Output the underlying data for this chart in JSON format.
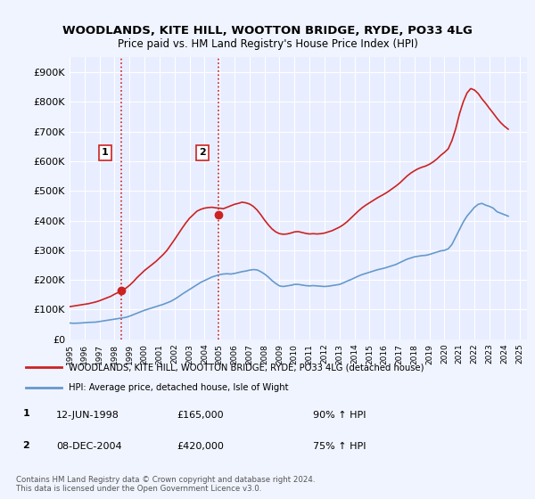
{
  "title": "WOODLANDS, KITE HILL, WOOTTON BRIDGE, RYDE, PO33 4LG",
  "subtitle": "Price paid vs. HM Land Registry's House Price Index (HPI)",
  "background_color": "#f0f4ff",
  "plot_bg_color": "#e8eeff",
  "ylim": [
    0,
    950000
  ],
  "yticks": [
    0,
    100000,
    200000,
    300000,
    400000,
    500000,
    600000,
    700000,
    800000,
    900000
  ],
  "ytick_labels": [
    "£0",
    "£100K",
    "£200K",
    "£300K",
    "£400K",
    "£500K",
    "£600K",
    "£700K",
    "£800K",
    "£900K"
  ],
  "xlim_start": 1995.0,
  "xlim_end": 2025.5,
  "xtick_years": [
    1995,
    1996,
    1997,
    1998,
    1999,
    2000,
    2001,
    2002,
    2003,
    2004,
    2005,
    2006,
    2007,
    2008,
    2009,
    2010,
    2011,
    2012,
    2013,
    2014,
    2015,
    2016,
    2017,
    2018,
    2019,
    2020,
    2021,
    2022,
    2023,
    2024,
    2025
  ],
  "sale1_x": 1998.44,
  "sale1_y": 165000,
  "sale1_label": "1",
  "sale2_x": 2004.93,
  "sale2_y": 420000,
  "sale2_label": "2",
  "hpi_line_color": "#6699cc",
  "price_line_color": "#cc2222",
  "vline_color": "#cc2222",
  "legend_label_price": "WOODLANDS, KITE HILL, WOOTTON BRIDGE, RYDE, PO33 4LG (detached house)",
  "legend_label_hpi": "HPI: Average price, detached house, Isle of Wight",
  "table_entries": [
    {
      "num": "1",
      "date": "12-JUN-1998",
      "price": "£165,000",
      "hpi": "90% ↑ HPI"
    },
    {
      "num": "2",
      "date": "08-DEC-2004",
      "price": "£420,000",
      "hpi": "75% ↑ HPI"
    }
  ],
  "footer": "Contains HM Land Registry data © Crown copyright and database right 2024.\nThis data is licensed under the Open Government Licence v3.0.",
  "hpi_data_x": [
    1995.0,
    1995.25,
    1995.5,
    1995.75,
    1996.0,
    1996.25,
    1996.5,
    1996.75,
    1997.0,
    1997.25,
    1997.5,
    1997.75,
    1998.0,
    1998.25,
    1998.5,
    1998.75,
    1999.0,
    1999.25,
    1999.5,
    1999.75,
    2000.0,
    2000.25,
    2000.5,
    2000.75,
    2001.0,
    2001.25,
    2001.5,
    2001.75,
    2002.0,
    2002.25,
    2002.5,
    2002.75,
    2003.0,
    2003.25,
    2003.5,
    2003.75,
    2004.0,
    2004.25,
    2004.5,
    2004.75,
    2005.0,
    2005.25,
    2005.5,
    2005.75,
    2006.0,
    2006.25,
    2006.5,
    2006.75,
    2007.0,
    2007.25,
    2007.5,
    2007.75,
    2008.0,
    2008.25,
    2008.5,
    2008.75,
    2009.0,
    2009.25,
    2009.5,
    2009.75,
    2010.0,
    2010.25,
    2010.5,
    2010.75,
    2011.0,
    2011.25,
    2011.5,
    2011.75,
    2012.0,
    2012.25,
    2012.5,
    2012.75,
    2013.0,
    2013.25,
    2013.5,
    2013.75,
    2014.0,
    2014.25,
    2014.5,
    2014.75,
    2015.0,
    2015.25,
    2015.5,
    2015.75,
    2016.0,
    2016.25,
    2016.5,
    2016.75,
    2017.0,
    2017.25,
    2017.5,
    2017.75,
    2018.0,
    2018.25,
    2018.5,
    2018.75,
    2019.0,
    2019.25,
    2019.5,
    2019.75,
    2020.0,
    2020.25,
    2020.5,
    2020.75,
    2021.0,
    2021.25,
    2021.5,
    2021.75,
    2022.0,
    2022.25,
    2022.5,
    2022.75,
    2023.0,
    2023.25,
    2023.5,
    2023.75,
    2024.0,
    2024.25
  ],
  "hpi_data_y": [
    55000,
    54000,
    54500,
    55000,
    56000,
    57000,
    57500,
    58000,
    60000,
    62000,
    64000,
    66000,
    68000,
    70000,
    72000,
    74000,
    78000,
    83000,
    88000,
    93000,
    98000,
    102000,
    106000,
    110000,
    114000,
    118000,
    123000,
    128000,
    135000,
    143000,
    152000,
    160000,
    168000,
    176000,
    184000,
    192000,
    198000,
    204000,
    210000,
    214000,
    218000,
    220000,
    221000,
    220000,
    222000,
    225000,
    228000,
    230000,
    233000,
    235000,
    234000,
    228000,
    220000,
    210000,
    198000,
    188000,
    180000,
    178000,
    180000,
    182000,
    185000,
    185000,
    183000,
    181000,
    180000,
    181000,
    180000,
    179000,
    178000,
    179000,
    181000,
    183000,
    185000,
    190000,
    196000,
    201000,
    207000,
    213000,
    218000,
    222000,
    226000,
    230000,
    234000,
    237000,
    240000,
    244000,
    248000,
    252000,
    258000,
    264000,
    270000,
    274000,
    278000,
    280000,
    282000,
    283000,
    286000,
    290000,
    294000,
    298000,
    300000,
    305000,
    320000,
    345000,
    370000,
    395000,
    415000,
    430000,
    445000,
    455000,
    458000,
    452000,
    448000,
    442000,
    430000,
    425000,
    420000,
    415000
  ],
  "price_data_x": [
    1995.0,
    1995.25,
    1995.5,
    1995.75,
    1996.0,
    1996.25,
    1996.5,
    1996.75,
    1997.0,
    1997.25,
    1997.5,
    1997.75,
    1998.0,
    1998.25,
    1998.5,
    1998.75,
    1999.0,
    1999.25,
    1999.5,
    1999.75,
    2000.0,
    2000.25,
    2000.5,
    2000.75,
    2001.0,
    2001.25,
    2001.5,
    2001.75,
    2002.0,
    2002.25,
    2002.5,
    2002.75,
    2003.0,
    2003.25,
    2003.5,
    2003.75,
    2004.0,
    2004.25,
    2004.5,
    2004.75,
    2005.0,
    2005.25,
    2005.5,
    2005.75,
    2006.0,
    2006.25,
    2006.5,
    2006.75,
    2007.0,
    2007.25,
    2007.5,
    2007.75,
    2008.0,
    2008.25,
    2008.5,
    2008.75,
    2009.0,
    2009.25,
    2009.5,
    2009.75,
    2010.0,
    2010.25,
    2010.5,
    2010.75,
    2011.0,
    2011.25,
    2011.5,
    2011.75,
    2012.0,
    2012.25,
    2012.5,
    2012.75,
    2013.0,
    2013.25,
    2013.5,
    2013.75,
    2014.0,
    2014.25,
    2014.5,
    2014.75,
    2015.0,
    2015.25,
    2015.5,
    2015.75,
    2016.0,
    2016.25,
    2016.5,
    2016.75,
    2017.0,
    2017.25,
    2017.5,
    2017.75,
    2018.0,
    2018.25,
    2018.5,
    2018.75,
    2019.0,
    2019.25,
    2019.5,
    2019.75,
    2020.0,
    2020.25,
    2020.5,
    2020.75,
    2021.0,
    2021.25,
    2021.5,
    2021.75,
    2022.0,
    2022.25,
    2022.5,
    2022.75,
    2023.0,
    2023.25,
    2023.5,
    2023.75,
    2024.0,
    2024.25
  ],
  "price_data_y": [
    110000,
    112000,
    114000,
    116000,
    118000,
    120000,
    123000,
    126000,
    130000,
    135000,
    140000,
    145000,
    152000,
    158000,
    165000,
    172000,
    182000,
    194000,
    208000,
    220000,
    232000,
    242000,
    252000,
    262000,
    274000,
    286000,
    300000,
    318000,
    336000,
    355000,
    374000,
    392000,
    408000,
    420000,
    432000,
    438000,
    442000,
    444000,
    445000,
    443000,
    442000,
    440000,
    445000,
    450000,
    455000,
    458000,
    462000,
    460000,
    456000,
    448000,
    436000,
    420000,
    402000,
    386000,
    372000,
    362000,
    356000,
    354000,
    355000,
    358000,
    362000,
    363000,
    360000,
    357000,
    355000,
    356000,
    355000,
    356000,
    358000,
    362000,
    366000,
    372000,
    378000,
    386000,
    396000,
    408000,
    420000,
    432000,
    443000,
    452000,
    460000,
    468000,
    476000,
    483000,
    490000,
    498000,
    507000,
    516000,
    526000,
    538000,
    550000,
    560000,
    568000,
    575000,
    580000,
    584000,
    590000,
    598000,
    608000,
    620000,
    630000,
    642000,
    670000,
    710000,
    760000,
    800000,
    830000,
    845000,
    840000,
    828000,
    810000,
    795000,
    778000,
    762000,
    745000,
    730000,
    718000,
    708000
  ]
}
